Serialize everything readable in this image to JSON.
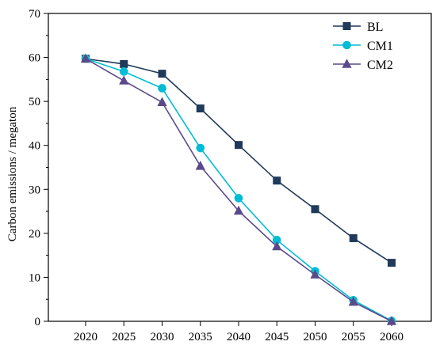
{
  "chart_data": {
    "type": "line",
    "title": "",
    "xlabel": "",
    "ylabel": "Carbon emissions / megaton",
    "x": [
      2020,
      2025,
      2030,
      2035,
      2040,
      2045,
      2050,
      2055,
      2060
    ],
    "ylim": [
      0,
      70
    ],
    "yticks": [
      0,
      10,
      20,
      30,
      40,
      50,
      60,
      70
    ],
    "grid": false,
    "legend_position": "top-right",
    "series": [
      {
        "name": "BL",
        "marker": "square",
        "color": "#1f3a5a",
        "values": [
          59.7,
          58.5,
          56.3,
          48.4,
          40.1,
          32.0,
          25.5,
          18.9,
          13.3
        ]
      },
      {
        "name": "CM1",
        "marker": "circle",
        "color": "#00bcd4",
        "values": [
          59.7,
          56.8,
          53.0,
          39.4,
          28.0,
          18.5,
          11.4,
          4.8,
          0.1
        ]
      },
      {
        "name": "CM2",
        "marker": "triangle",
        "color": "#5b4a8b",
        "values": [
          59.7,
          54.7,
          49.8,
          35.3,
          25.1,
          17.0,
          10.6,
          4.4,
          0.0
        ]
      }
    ]
  }
}
